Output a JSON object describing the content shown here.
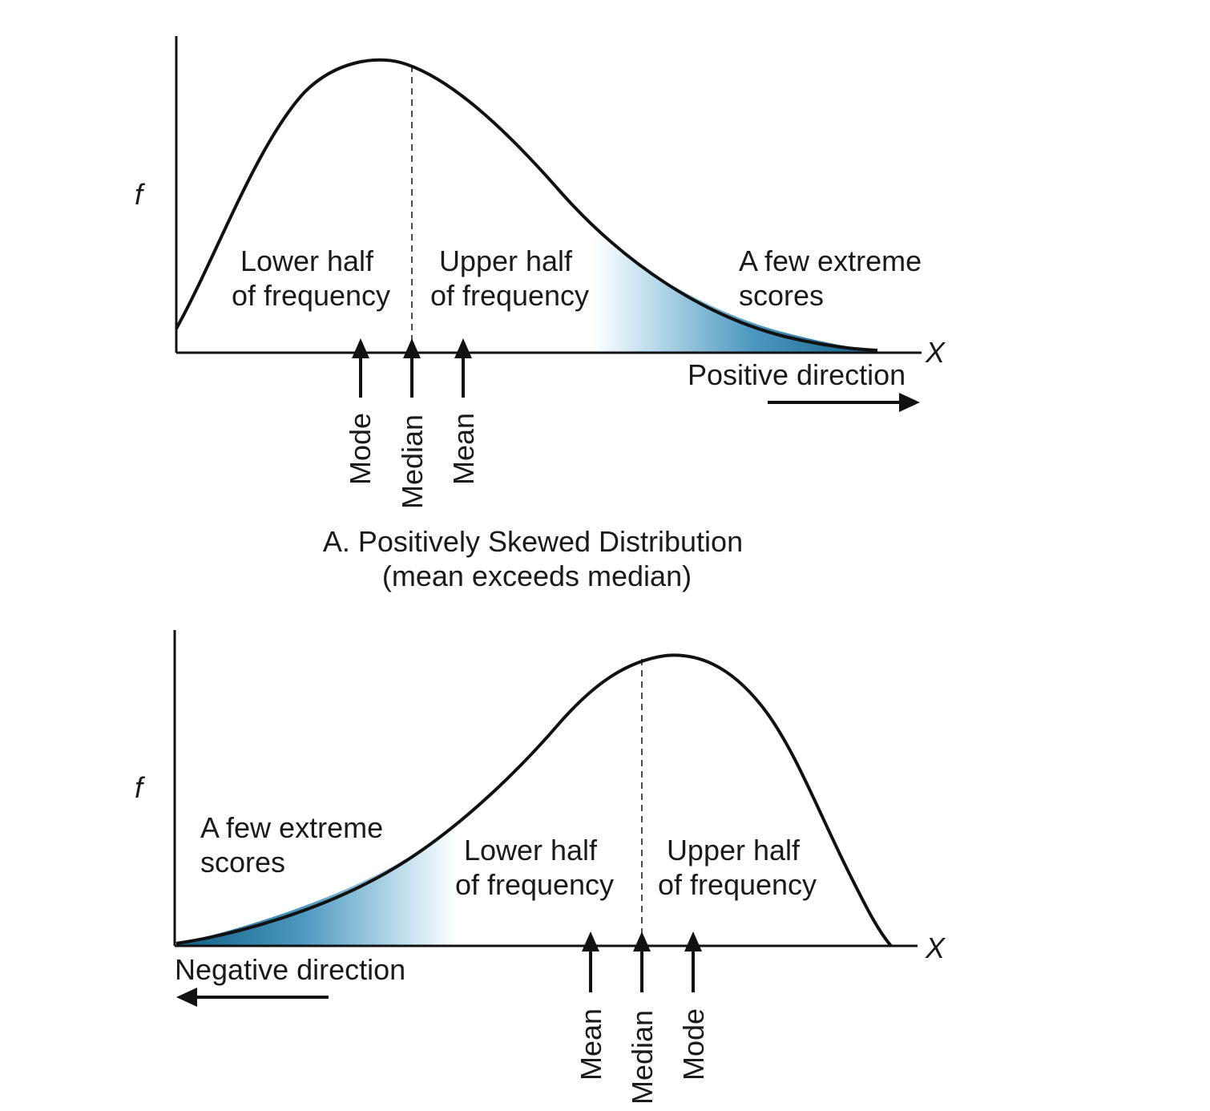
{
  "panel_a": {
    "y_axis_label": "f",
    "x_axis_label": "X",
    "region_lower": [
      "Lower half",
      "of frequency"
    ],
    "region_upper": [
      "Upper half",
      "of frequency"
    ],
    "region_tail": [
      "A few extreme",
      "scores"
    ],
    "direction_label": "Positive direction",
    "markers": [
      "Mode",
      "Median",
      "Mean"
    ],
    "caption": [
      "A. Positively Skewed Distribution",
      "(mean exceeds median)"
    ]
  },
  "panel_b": {
    "y_axis_label": "f",
    "x_axis_label": "X",
    "region_tail": [
      "A few extreme",
      "scores"
    ],
    "region_lower": [
      "Lower half",
      "of frequency"
    ],
    "region_upper": [
      "Upper half",
      "of frequency"
    ],
    "direction_label": "Negative direction",
    "markers": [
      "Mean",
      "Median",
      "Mode"
    ]
  },
  "colors": {
    "curve": "#111111",
    "tail_shade_dark": "#0f5f86",
    "tail_shade_light": "#ffffff"
  }
}
